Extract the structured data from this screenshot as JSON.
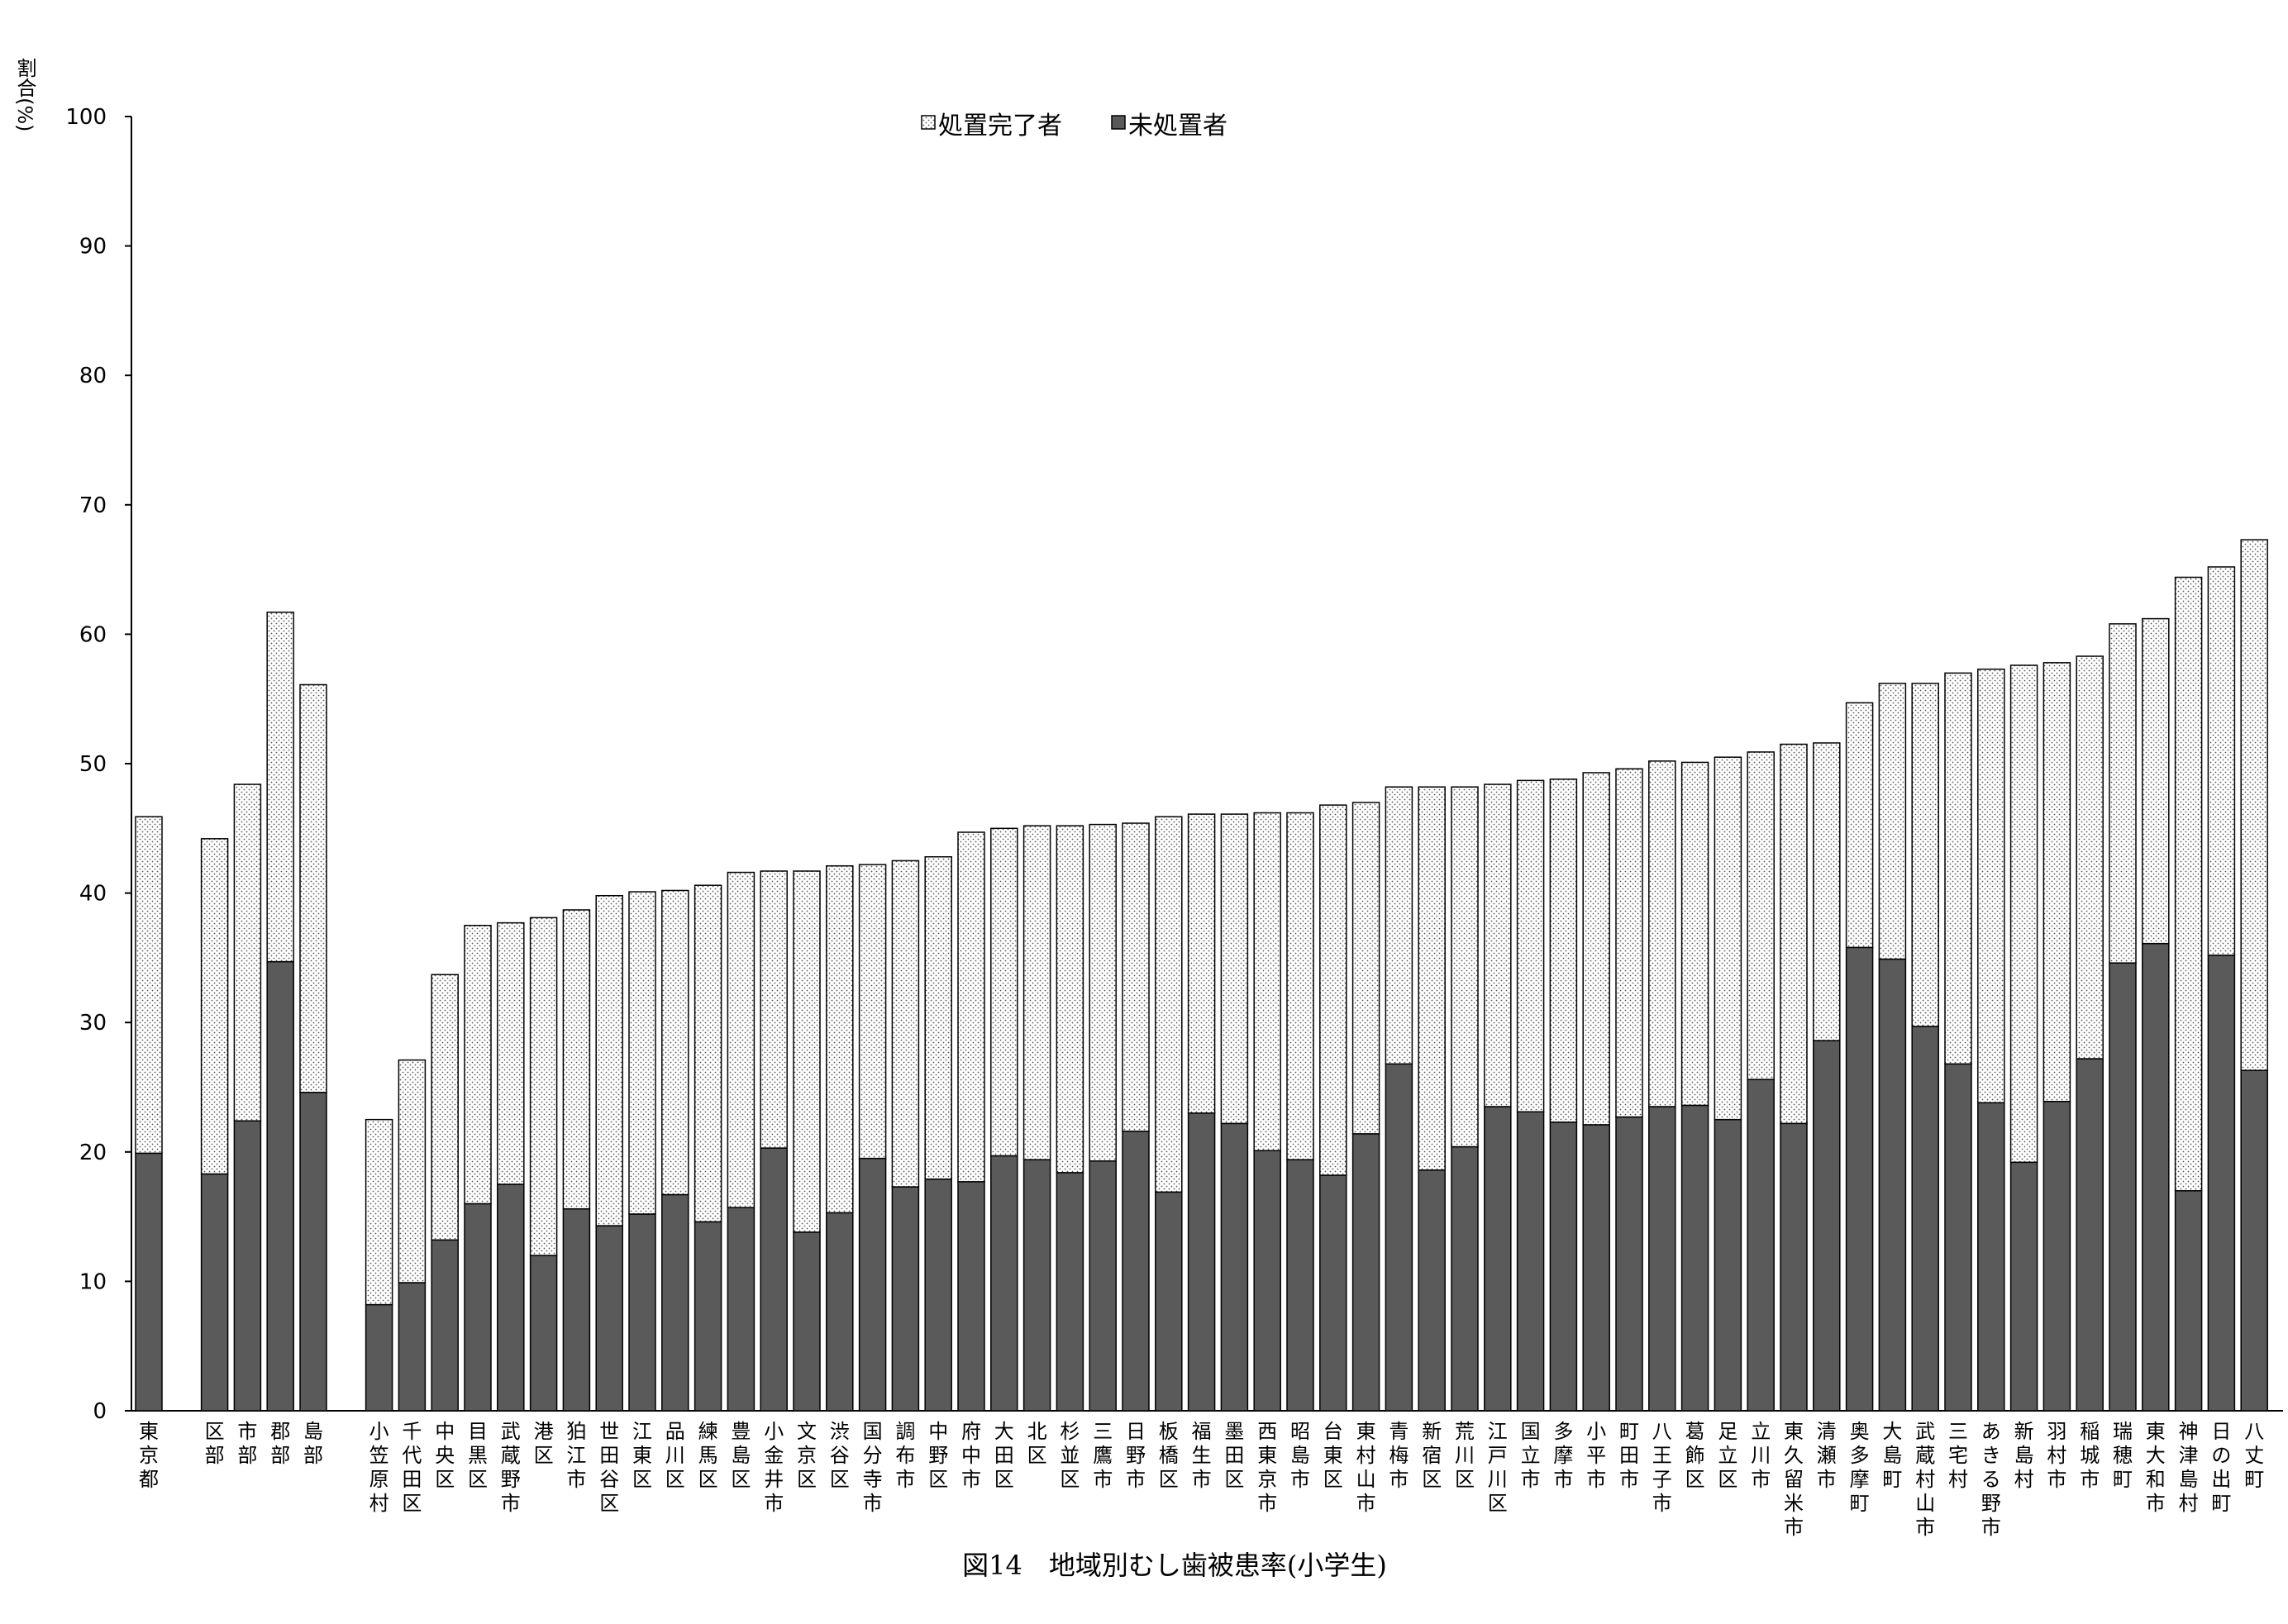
{
  "chart_data": {
    "type": "bar",
    "stacked": true,
    "title": "図14　地域別むし歯被患率(小学生)",
    "ylabel": "割合(%)",
    "xlabel": "",
    "ylim": [
      0,
      100
    ],
    "yticks": [
      "0",
      "10",
      "20",
      "30",
      "40",
      "50",
      "60",
      "70",
      "80",
      "90",
      "100"
    ],
    "grid": false,
    "legend_position": "top-center",
    "categories": [
      "東京都",
      "区部",
      "市部",
      "郡部",
      "島部",
      "小笠原村",
      "千代田区",
      "中央区",
      "目黒区",
      "武蔵野市",
      "港区",
      "狛江市",
      "世田谷区",
      "江東区",
      "品川区",
      "練馬区",
      "豊島区",
      "小金井市",
      "文京区",
      "渋谷区",
      "国分寺市",
      "調布市",
      "中野区",
      "府中市",
      "大田区",
      "北区",
      "杉並区",
      "三鷹市",
      "日野市",
      "板橋区",
      "福生市",
      "墨田区",
      "西東京市",
      "昭島市",
      "台東区",
      "東村山市",
      "青梅市",
      "新宿区",
      "荒川区",
      "江戸川区",
      "国立市",
      "多摩市",
      "小平市",
      "町田市",
      "八王子市",
      "葛飾区",
      "足立区",
      "立川市",
      "東久留米市",
      "清瀬市",
      "奥多摩町",
      "大島町",
      "武蔵村山市",
      "三宅村",
      "あきる野市",
      "新島村",
      "羽村市",
      "稲城市",
      "瑞穂町",
      "東大和市",
      "神津島村",
      "日の出町",
      "八丈町"
    ],
    "series": [
      {
        "name": "未処置者",
        "color": "#5a5a5a",
        "values": [
          19.9,
          18.3,
          22.4,
          34.7,
          24.6,
          8.2,
          9.9,
          13.2,
          16.0,
          17.5,
          12.0,
          15.6,
          14.3,
          15.2,
          16.7,
          14.6,
          15.7,
          20.3,
          13.8,
          15.3,
          19.5,
          17.3,
          17.9,
          17.7,
          19.7,
          19.4,
          18.4,
          19.3,
          21.6,
          16.9,
          23.0,
          22.2,
          20.1,
          19.4,
          18.2,
          21.4,
          26.8,
          18.6,
          20.4,
          23.5,
          23.1,
          22.3,
          22.1,
          22.7,
          23.5,
          23.6,
          22.5,
          25.6,
          22.2,
          28.6,
          35.8,
          34.9,
          29.7,
          26.8,
          23.8,
          19.2,
          23.9,
          27.2,
          34.6,
          36.1,
          17.0,
          35.2,
          26.3
        ]
      },
      {
        "name": "処置完了者",
        "color": "#ffffff",
        "pattern": "dotted",
        "values": [
          26.0,
          25.9,
          26.0,
          27.0,
          31.5,
          14.3,
          17.2,
          20.5,
          21.5,
          20.2,
          26.1,
          23.1,
          25.5,
          24.9,
          23.5,
          26.0,
          25.9,
          21.4,
          27.9,
          26.8,
          22.7,
          25.2,
          24.9,
          27.0,
          25.3,
          25.8,
          26.8,
          26.0,
          23.8,
          29.0,
          23.1,
          23.9,
          26.1,
          26.8,
          28.6,
          25.6,
          21.4,
          29.6,
          27.8,
          24.9,
          25.6,
          26.5,
          27.2,
          26.9,
          26.7,
          26.5,
          28.0,
          25.3,
          29.3,
          23.0,
          18.9,
          21.3,
          26.5,
          30.2,
          33.5,
          38.4,
          33.9,
          31.1,
          26.2,
          25.1,
          47.4,
          30.0,
          41.0
        ]
      }
    ]
  }
}
